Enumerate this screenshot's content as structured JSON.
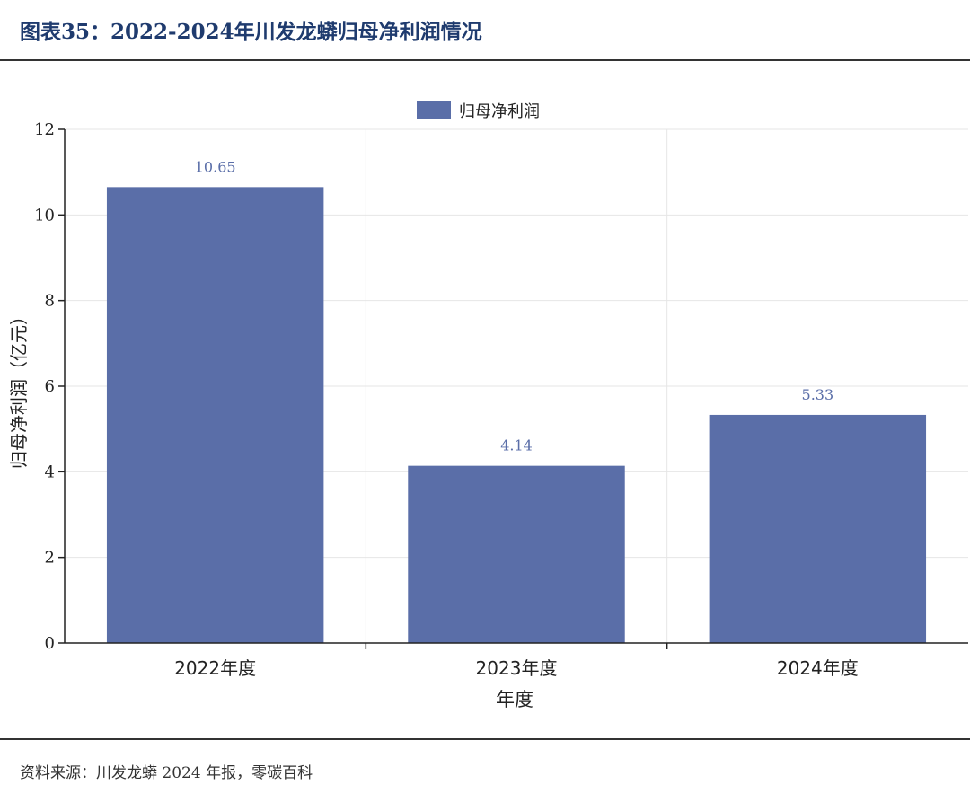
{
  "header": {
    "title": "图表35：2022-2024年川发龙蟒归母净利润情况"
  },
  "footer": {
    "source": "资料来源：川发龙蟒 2024 年报，零碳百科"
  },
  "colors": {
    "bar": "#5a6ea8",
    "label": "#5a6ea8",
    "grid": "#e6e6e6",
    "axis": "#222222",
    "title": "#1f3b6e"
  },
  "chart_data": {
    "type": "bar",
    "categories": [
      "2022年度",
      "2023年度",
      "2024年度"
    ],
    "series": [
      {
        "name": "归母净利润",
        "values": [
          10.65,
          4.14,
          5.33
        ]
      }
    ],
    "data_labels": [
      "10.65",
      "4.14",
      "5.33"
    ],
    "xlabel": "年度",
    "ylabel": "归母净利润（亿元）",
    "ylim": [
      0,
      12
    ],
    "yticks": [
      "0",
      "2",
      "4",
      "6",
      "8",
      "10",
      "12"
    ],
    "ytick_values": [
      0,
      2,
      4,
      6,
      8,
      10,
      12
    ],
    "grid": true,
    "legend_position": "top-center"
  }
}
